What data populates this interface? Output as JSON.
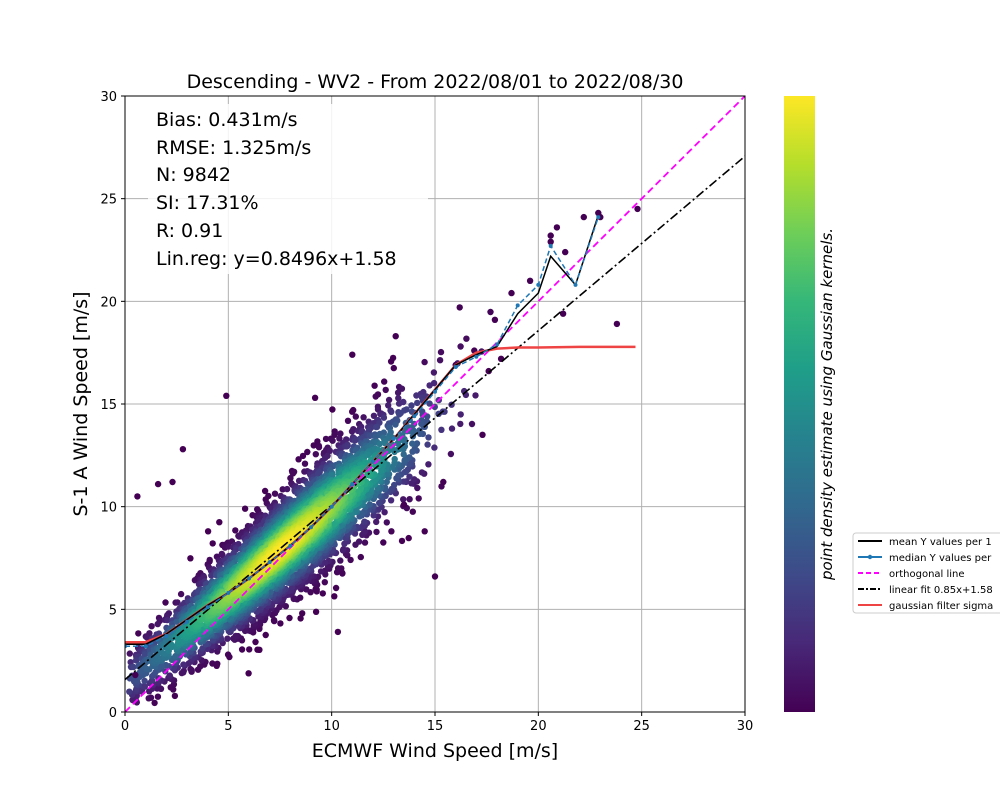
{
  "chart_data": {
    "type": "scatter",
    "title": "Descending - WV2 - From 2022/08/01 to 2022/08/30",
    "xlabel": "ECMWF Wind Speed [m/s]",
    "ylabel": "S-1 A Wind Speed [m/s]",
    "xlim": [
      0,
      30
    ],
    "ylim": [
      0,
      30
    ],
    "xticks": [
      "0",
      "5",
      "10",
      "15",
      "20",
      "25",
      "30"
    ],
    "yticks": [
      "0",
      "5",
      "10",
      "15",
      "20",
      "25",
      "30"
    ],
    "grid": true,
    "stats": [
      "Bias: 0.431m/s",
      "RMSE: 1.325m/s",
      "N: 9842",
      "SI: 17.31%",
      "R: 0.91",
      "Lin.reg: y=0.8496x+1.58"
    ],
    "colorbar_label": "point density estimate using Gaussian kernels.",
    "colormap": [
      "#440154",
      "#482878",
      "#3e4a89",
      "#31688e",
      "#26828e",
      "#1f9e89",
      "#35b779",
      "#6ece58",
      "#b5de2b",
      "#fde725"
    ],
    "legend_position": "right, outside plot (clipped)",
    "legend": [
      {
        "label": "mean Y values per 1",
        "color": "#000000",
        "style": "solid"
      },
      {
        "label": "median Y values per",
        "color": "#1f77b4",
        "style": "solid-dots"
      },
      {
        "label": "orthogonal line",
        "color": "#ff00ff",
        "style": "dashed"
      },
      {
        "label": "linear fit 0.85x+1.58",
        "color": "#000000",
        "style": "dashdot"
      },
      {
        "label": "gaussian filter sigma",
        "color": "#ef4444",
        "style": "solid"
      }
    ],
    "series": [
      {
        "name": "orthogonal line",
        "x": [
          0,
          30
        ],
        "y": [
          0,
          30
        ]
      },
      {
        "name": "linear fit 0.85x+1.58",
        "x": [
          0,
          30
        ],
        "y": [
          1.58,
          27.07
        ]
      },
      {
        "name": "gaussian filter sigma",
        "x": [
          0,
          1,
          2,
          3,
          4,
          5,
          6,
          7,
          8,
          9,
          10,
          11,
          12,
          13,
          14,
          15,
          16,
          17,
          18,
          19,
          20,
          22,
          24.7
        ],
        "y": [
          3.4,
          3.4,
          3.8,
          4.5,
          5.2,
          5.8,
          6.5,
          7.3,
          8.1,
          9.0,
          10.0,
          11.1,
          12.2,
          13.3,
          14.5,
          15.7,
          16.9,
          17.5,
          17.7,
          17.75,
          17.75,
          17.78,
          17.78
        ]
      },
      {
        "name": "mean Y values per 1",
        "x": [
          0,
          1,
          2,
          3,
          4,
          5,
          6,
          7,
          8,
          9,
          10,
          11,
          12,
          13,
          14,
          15,
          16,
          17,
          18,
          19,
          20,
          20.6,
          21.8,
          22.9
        ],
        "y": [
          3.3,
          3.3,
          3.8,
          4.5,
          5.2,
          5.8,
          6.5,
          7.3,
          8.1,
          9.0,
          10.0,
          11.1,
          12.2,
          13.3,
          14.5,
          15.7,
          16.9,
          17.4,
          17.8,
          19.4,
          20.4,
          22.2,
          20.8,
          24.2
        ]
      },
      {
        "name": "median Y values per",
        "x": [
          0,
          1,
          2,
          3,
          4,
          5,
          6,
          7,
          8,
          9,
          10,
          11,
          12,
          13,
          14,
          15,
          16,
          17,
          18,
          19,
          20,
          20.6,
          21.8,
          22.9
        ],
        "y": [
          3.2,
          3.2,
          3.7,
          4.4,
          5.1,
          5.8,
          6.5,
          7.3,
          8.1,
          9.0,
          10.0,
          11.1,
          12.2,
          13.3,
          14.4,
          15.6,
          16.8,
          17.3,
          17.9,
          19.8,
          20.8,
          22.7,
          20.8,
          24.1
        ]
      }
    ],
    "outliers": {
      "x": [
        20.6,
        20.6,
        20.9,
        21.3,
        22.2,
        22.9,
        23.0,
        24.8,
        23.8,
        21.2,
        19.6,
        18.7,
        17.9,
        18.2,
        17.6,
        16.9,
        17.3,
        13.1,
        13.5,
        15.4,
        16.0,
        4.9,
        1.6,
        2.3,
        0.6,
        0.5,
        2.8,
        15.0,
        10.3,
        11.0,
        9.2,
        14.5
      ],
      "y": [
        23.2,
        22.9,
        23.6,
        22.4,
        24.1,
        24.3,
        24.1,
        24.5,
        18.9,
        19.4,
        21.0,
        20.4,
        19.1,
        17.2,
        16.6,
        17.6,
        13.5,
        18.3,
        10.1,
        11.2,
        16.9,
        15.4,
        11.1,
        11.2,
        10.5,
        1.8,
        12.8,
        6.6,
        3.9,
        17.4,
        15.3,
        8.8
      ]
    }
  }
}
